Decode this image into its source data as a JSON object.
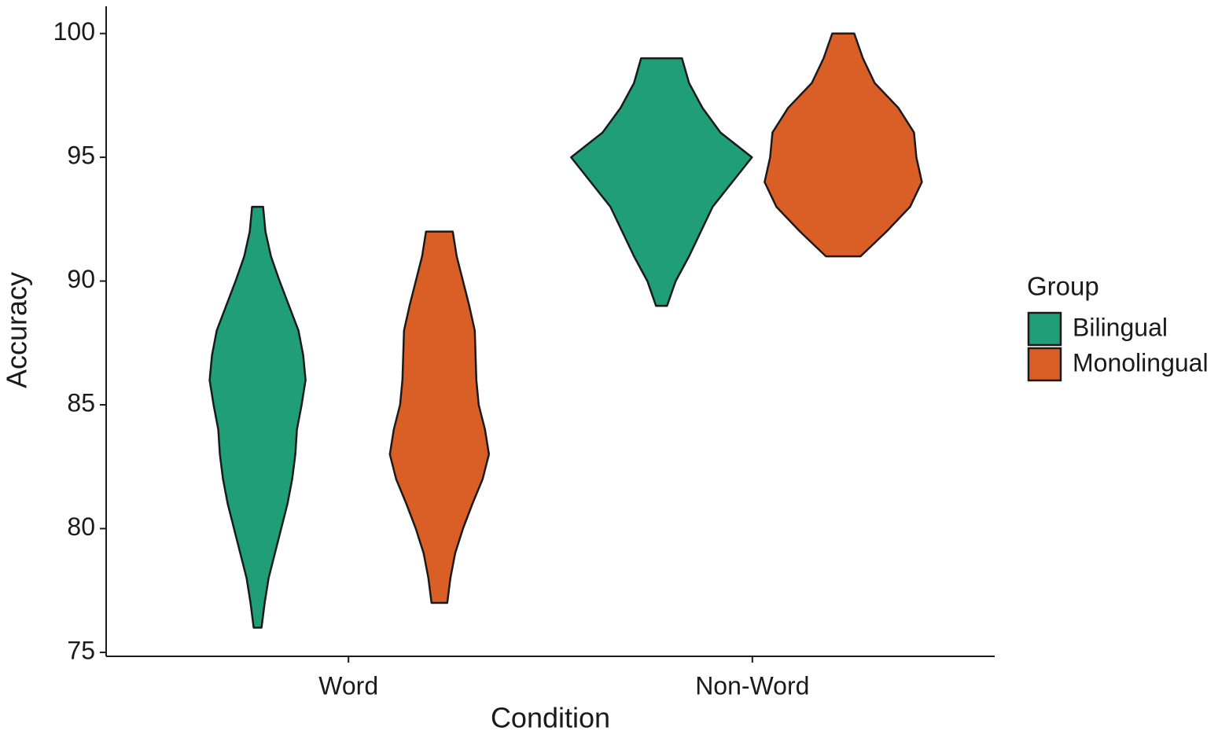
{
  "chart_data": {
    "type": "violin",
    "x_label": "Condition",
    "y_label": "Accuracy",
    "categories": [
      "Word",
      "Non-Word"
    ],
    "ylim": [
      74.84,
      101.1
    ],
    "yticks": [
      75,
      80,
      85,
      90,
      95,
      100
    ],
    "legend_title": "Group",
    "legend_position": "right",
    "series": [
      {
        "name": "Bilingual",
        "color": "#1f9e77",
        "violins": [
          {
            "y": [
              93,
              92,
              91,
              90,
              89,
              88,
              87,
              86,
              85,
              84,
              83,
              82,
              81,
              80,
              79,
              78,
              77,
              76
            ],
            "width": [
              0.07,
              0.1,
              0.17,
              0.28,
              0.4,
              0.52,
              0.58,
              0.61,
              0.56,
              0.5,
              0.48,
              0.44,
              0.38,
              0.3,
              0.22,
              0.14,
              0.09,
              0.05
            ]
          },
          {
            "y": [
              99,
              98,
              97,
              96,
              95,
              94,
              93,
              92,
              91,
              90,
              89
            ],
            "width": [
              0.26,
              0.35,
              0.52,
              0.75,
              1.15,
              0.9,
              0.65,
              0.5,
              0.35,
              0.18,
              0.07
            ]
          }
        ]
      },
      {
        "name": "Monolingual",
        "color": "#d95f27",
        "violins": [
          {
            "y": [
              92,
              91,
              90,
              89,
              88,
              87,
              86,
              85,
              84,
              83,
              82,
              81,
              80,
              79,
              78,
              77
            ],
            "width": [
              0.17,
              0.22,
              0.3,
              0.38,
              0.45,
              0.46,
              0.47,
              0.5,
              0.58,
              0.63,
              0.55,
              0.42,
              0.3,
              0.2,
              0.14,
              0.1
            ]
          },
          {
            "y": [
              100,
              99,
              98,
              97,
              96,
              95,
              94,
              93,
              92,
              91
            ],
            "width": [
              0.14,
              0.25,
              0.4,
              0.7,
              0.9,
              0.93,
              1.0,
              0.85,
              0.55,
              0.22
            ]
          }
        ]
      }
    ]
  }
}
